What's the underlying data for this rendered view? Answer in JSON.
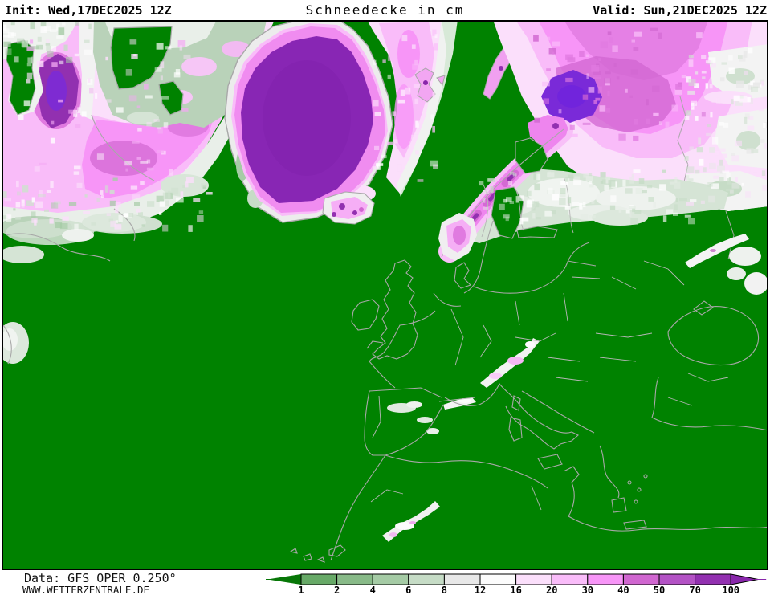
{
  "header": {
    "init": "Init: Wed,17DEC2025 12Z",
    "title": "Schneedecke in cm",
    "valid": "Valid: Sun,21DEC2025 12Z"
  },
  "footer": {
    "source": "Data: GFS OPER 0.250°",
    "site": "WWW.WETTERZENTRALE.DE"
  },
  "legend": {
    "labels": [
      "1",
      "2",
      "4",
      "6",
      "8",
      "12",
      "16",
      "20",
      "30",
      "40",
      "50",
      "70",
      "100"
    ],
    "box_colors": [
      "#67a967",
      "#88ba88",
      "#a5cba5",
      "#c6dcc6",
      "#e8e8e8",
      "#fcfcfc",
      "#fbdffb",
      "#f9bcf9",
      "#f795f7",
      "#d066d0",
      "#b352c5",
      "#9230b0"
    ],
    "arrow_left_color": "#077707",
    "arrow_right_color": "#8826aa"
  },
  "map": {
    "background_color": "#008200",
    "coastline_color": "#a8a8a8",
    "border_color": "#b6b6b6",
    "frame_color": "#000000"
  }
}
